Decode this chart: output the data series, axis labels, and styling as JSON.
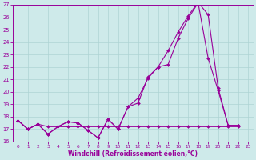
{
  "xlabel": "Windchill (Refroidissement éolien,°C)",
  "bg_color": "#ceeaea",
  "grid_color": "#aed4d4",
  "line_color": "#990099",
  "xlim": [
    -0.5,
    23.5
  ],
  "ylim": [
    16,
    27
  ],
  "xticks": [
    0,
    1,
    2,
    3,
    4,
    5,
    6,
    7,
    8,
    9,
    10,
    11,
    12,
    13,
    14,
    15,
    16,
    17,
    18,
    19,
    20,
    21,
    22,
    23
  ],
  "yticks": [
    16,
    17,
    18,
    19,
    20,
    21,
    22,
    23,
    24,
    25,
    26,
    27
  ],
  "line1_x": [
    0,
    1,
    2,
    3,
    4,
    5,
    6,
    7,
    8,
    9,
    10,
    11,
    12,
    13,
    14,
    15,
    16,
    17,
    18,
    19,
    20,
    21,
    22
  ],
  "line1_y": [
    17.7,
    17.0,
    17.4,
    16.6,
    17.2,
    17.6,
    17.5,
    16.9,
    16.3,
    17.8,
    17.0,
    18.8,
    19.1,
    21.2,
    22.0,
    22.2,
    24.3,
    25.9,
    27.15,
    22.7,
    20.1,
    17.3,
    17.3
  ],
  "line2_x": [
    0,
    1,
    2,
    3,
    4,
    5,
    6,
    7,
    8,
    9,
    10,
    11,
    12,
    13,
    14,
    15,
    16,
    17,
    18,
    19,
    20,
    21,
    22
  ],
  "line2_y": [
    17.7,
    17.0,
    17.4,
    16.6,
    17.2,
    17.6,
    17.5,
    16.9,
    16.3,
    17.8,
    17.0,
    18.8,
    19.5,
    21.1,
    22.0,
    23.3,
    24.8,
    26.1,
    27.2,
    26.2,
    20.3,
    17.3,
    17.3
  ],
  "line3_x": [
    0,
    1,
    2,
    3,
    4,
    5,
    6,
    7,
    8,
    9,
    10,
    11,
    12,
    13,
    14,
    15,
    16,
    17,
    18,
    19,
    20,
    21,
    22
  ],
  "line3_y": [
    17.7,
    17.0,
    17.4,
    17.2,
    17.2,
    17.2,
    17.2,
    17.2,
    17.2,
    17.2,
    17.2,
    17.2,
    17.2,
    17.2,
    17.2,
    17.2,
    17.2,
    17.2,
    17.2,
    17.2,
    17.2,
    17.2,
    17.2
  ]
}
